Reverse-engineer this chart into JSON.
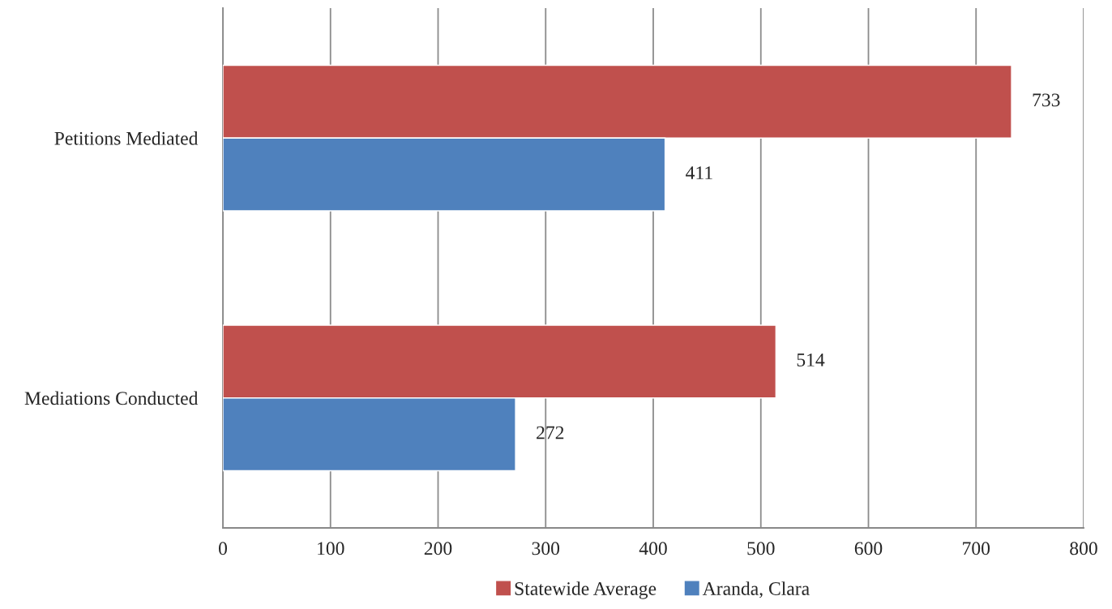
{
  "chart_data": {
    "type": "bar",
    "orientation": "horizontal",
    "categories": [
      "Petitions Mediated",
      "Mediations Conducted"
    ],
    "series": [
      {
        "name": "Statewide Average",
        "color": "#c0504d",
        "values": [
          733,
          514
        ]
      },
      {
        "name": "Aranda, Clara",
        "color": "#4f81bd",
        "values": [
          411,
          272
        ]
      }
    ],
    "xlim": [
      0,
      800
    ],
    "xticks": [
      0,
      100,
      200,
      300,
      400,
      500,
      600,
      700,
      800
    ],
    "grid": "x",
    "legend": "bottom",
    "data_labels": true
  }
}
